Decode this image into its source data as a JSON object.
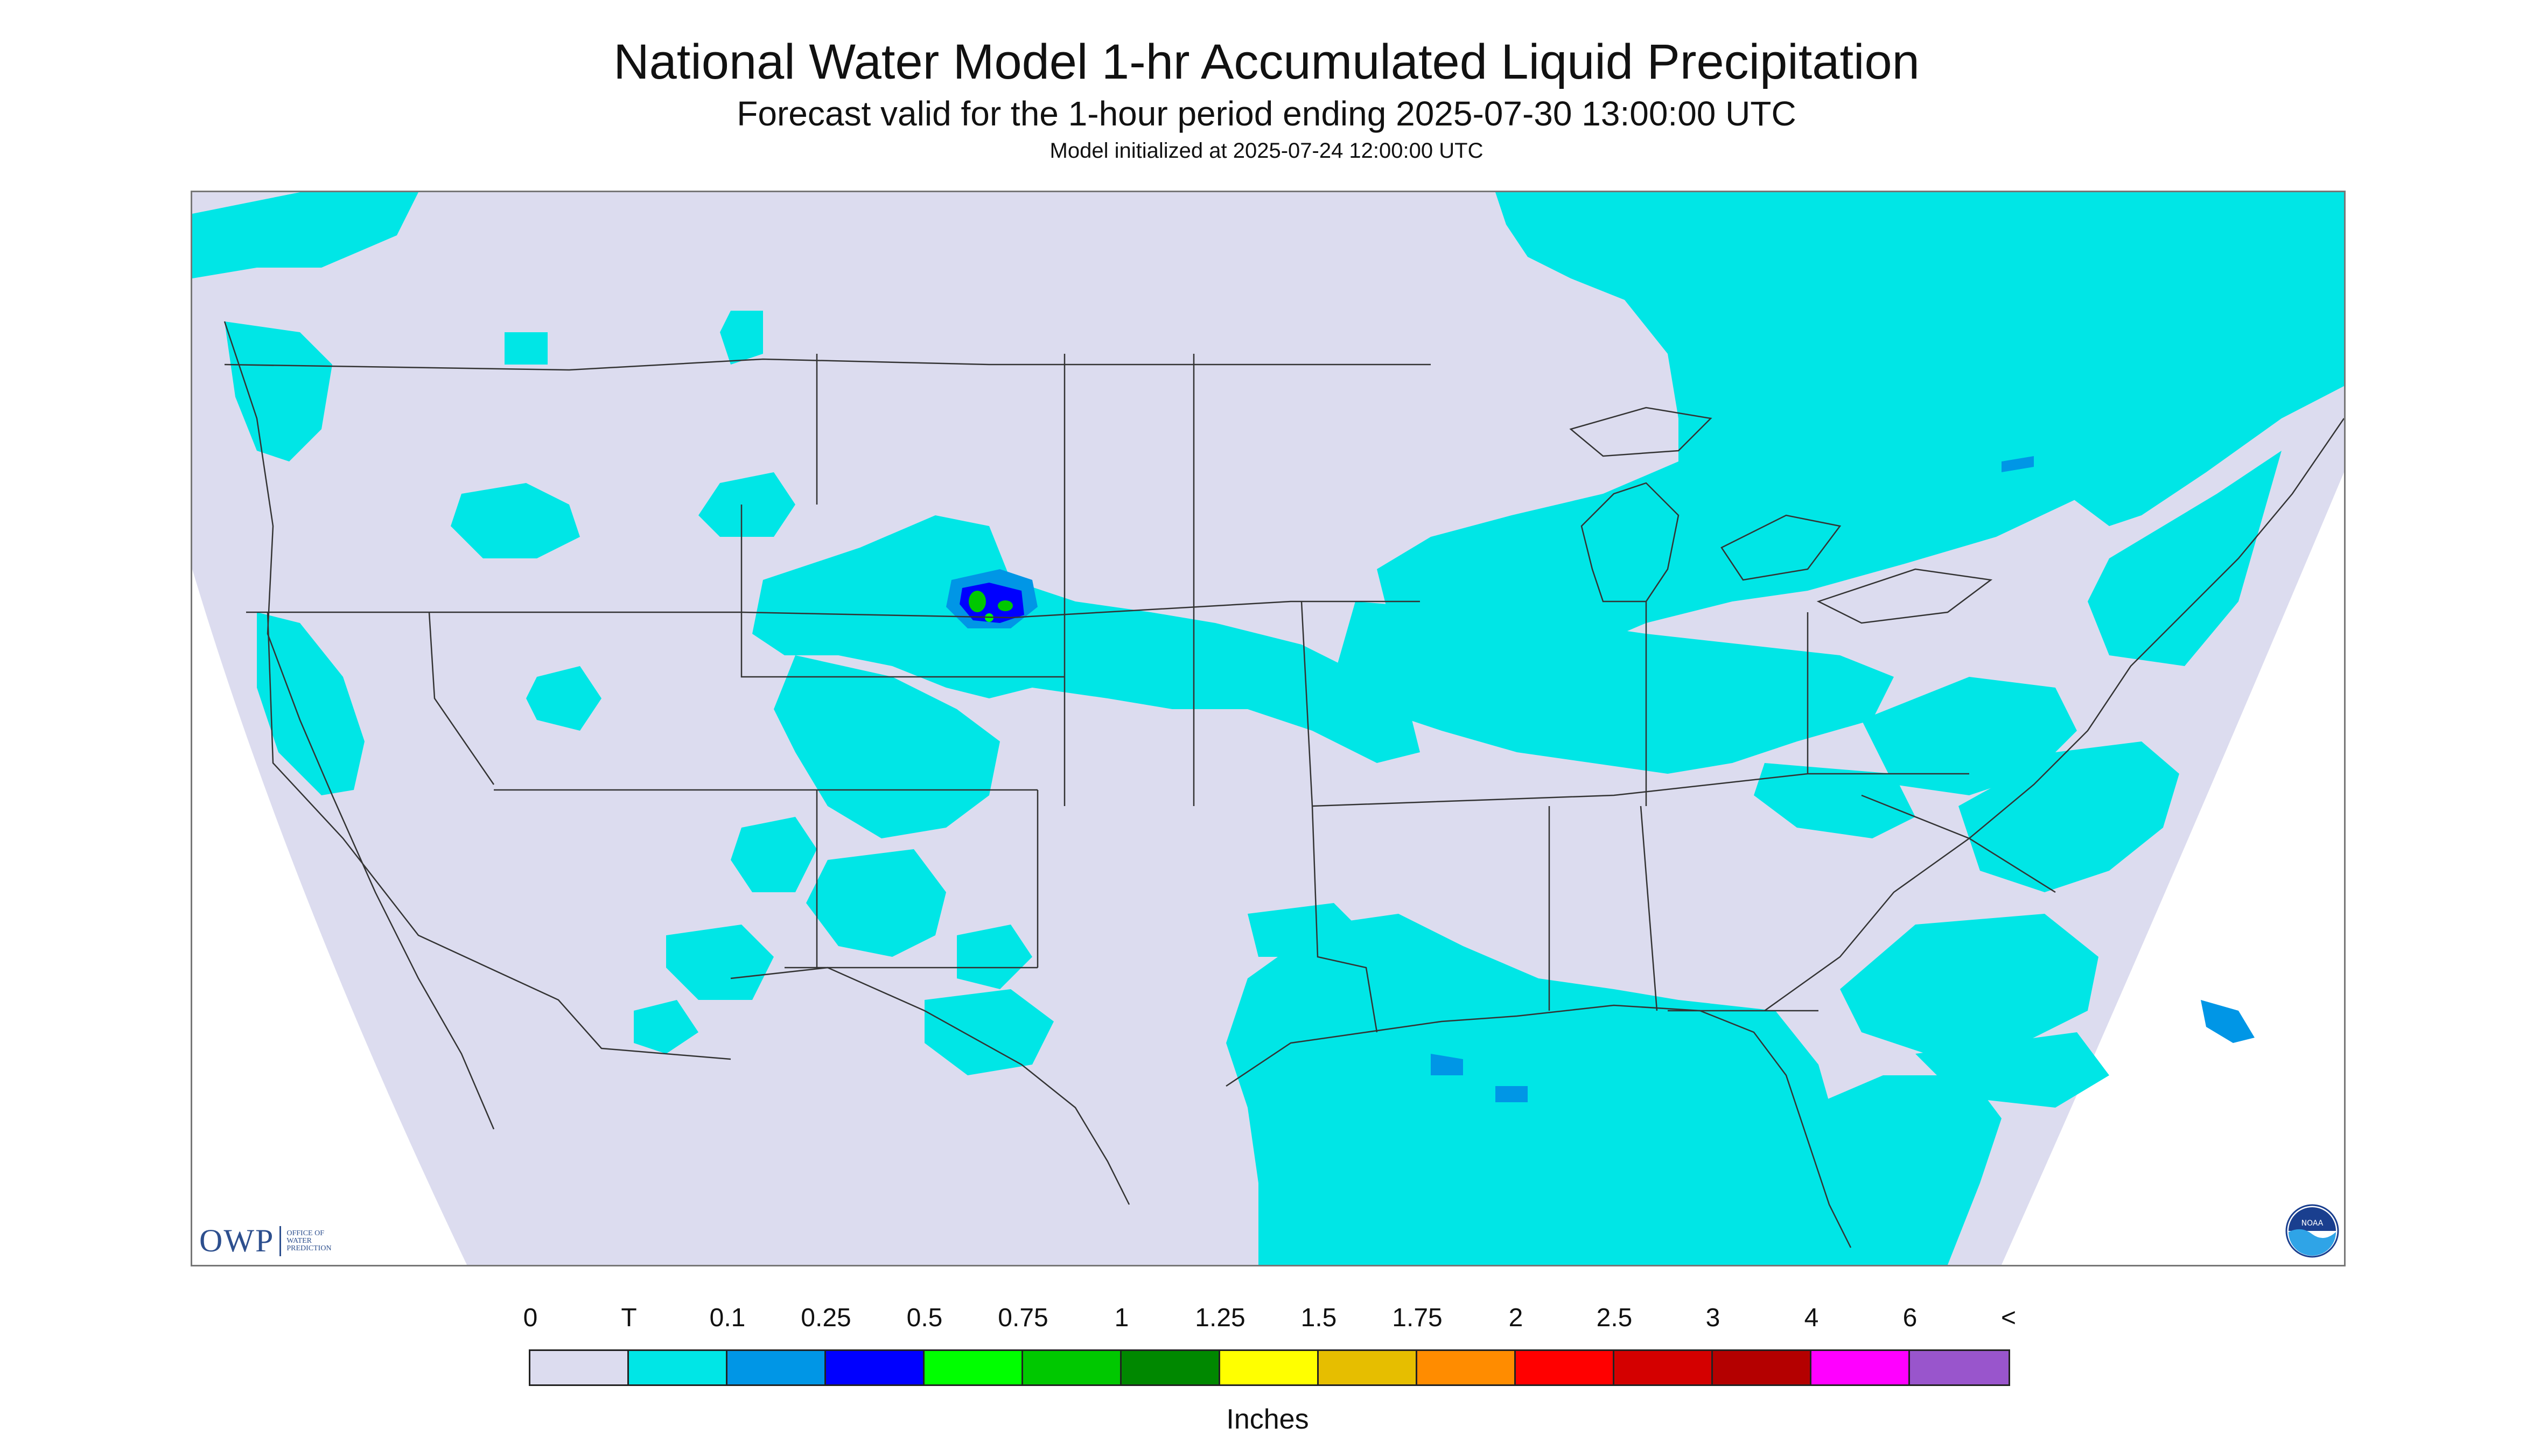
{
  "header": {
    "title": "National Water Model 1-hr Accumulated Liquid Precipitation",
    "subtitle": "Forecast valid for the 1-hour period ending 2025-07-30 13:00:00 UTC",
    "initialized": "Model initialized at 2025-07-24 12:00:00 UTC"
  },
  "map": {
    "background_color": "#dcdcef",
    "outside_color": "#ffffff",
    "trace_color": "#00e6e6",
    "light_blue_color": "#0096e6",
    "blue_color": "#0000ff",
    "green_color": "#00c800",
    "border_color": "#333333",
    "region": "Contiguous United States"
  },
  "logos": {
    "owp_mark": "OWP",
    "owp_text": [
      "OFFICE OF",
      "WATER",
      "PREDICTION"
    ],
    "noaa_text": "NOAA"
  },
  "legend": {
    "labels": [
      "0",
      "T",
      "0.1",
      "0.25",
      "0.5",
      "0.75",
      "1",
      "1.25",
      "1.5",
      "1.75",
      "2",
      "2.5",
      "3",
      "4",
      "6",
      "<"
    ],
    "colors": [
      "#dcdcef",
      "#00e6e6",
      "#0096e6",
      "#0000ff",
      "#00ff00",
      "#00c800",
      "#008800",
      "#ffff00",
      "#e6be00",
      "#ff8c00",
      "#ff0000",
      "#d40000",
      "#b40000",
      "#ff00ff",
      "#9955cc"
    ],
    "unit": "Inches"
  }
}
